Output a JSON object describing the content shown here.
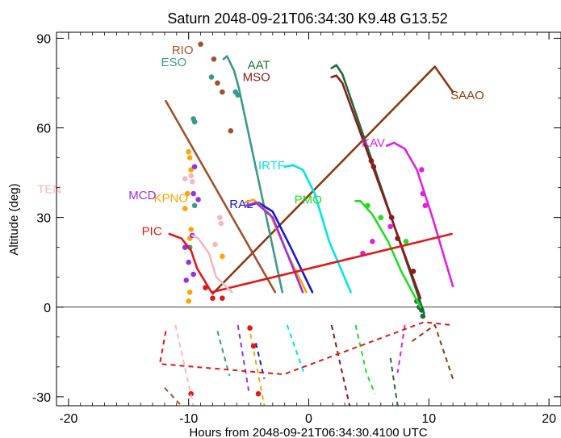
{
  "chart_data": {
    "type": "line",
    "title": "Saturn 2048-09-21T06:34:30   K9.48   G13.52",
    "xlabel": "Hours from 2048-09-21T06:34:30.4100 UTC",
    "ylabel": "Altitude (deg)",
    "xlim": [
      -21,
      21
    ],
    "ylim": [
      -33,
      92
    ],
    "x_ticks": [
      -20,
      -10,
      0,
      10,
      20
    ],
    "y_ticks": [
      -30,
      0,
      30,
      60,
      90
    ],
    "x_tick_labels": [
      "-20",
      "-10",
      "0",
      "10",
      "20"
    ],
    "y_tick_labels": [
      "-30",
      "0",
      "30",
      "60",
      "90"
    ],
    "horizon_line": 0,
    "series": [
      {
        "name": "SAAO",
        "color": "#8B3A0E",
        "label_at": [
          11.8,
          71
        ],
        "label_anchor": "start",
        "solid": [
          [
            -8.0,
            4.5
          ],
          [
            10.5,
            80.5
          ],
          [
            12.0,
            72
          ]
        ],
        "dashed": [
          [
            12.0,
            -24
          ],
          [
            10.5,
            -6
          ],
          [
            8.4,
            -12
          ]
        ],
        "dots": []
      },
      {
        "name": "RIO",
        "color": "#A0522D",
        "label_at": [
          -11.4,
          86
        ],
        "label_anchor": "start",
        "solid": [
          [
            -11.9,
            69
          ],
          [
            -2.8,
            5
          ]
        ],
        "dashed": [
          [
            -12.0,
            -27
          ],
          [
            -10.6,
            -33
          ]
        ],
        "dots": [
          [
            -9.0,
            88
          ],
          [
            -7.9,
            83
          ],
          [
            -7.6,
            75
          ],
          [
            -7.2,
            72
          ],
          [
            -6.5,
            59
          ]
        ]
      },
      {
        "name": "ESO",
        "color": "#3A9A8A",
        "label_at": [
          -12.3,
          82
        ],
        "label_anchor": "start",
        "solid": [
          [
            -7.1,
            83
          ],
          [
            -6.8,
            84
          ],
          [
            -6.2,
            79
          ],
          [
            -5.8,
            73
          ],
          [
            -2.2,
            5
          ]
        ],
        "dashed": [
          [
            -7.6,
            -8
          ],
          [
            -6.6,
            -23
          ]
        ],
        "dots": [
          [
            -9.6,
            63
          ],
          [
            -9.5,
            62
          ],
          [
            -6.1,
            72
          ],
          [
            -5.9,
            71
          ],
          [
            -8.1,
            77
          ],
          [
            -9.5,
            34
          ],
          [
            -9.9,
            20
          ]
        ]
      },
      {
        "name": "AAT",
        "color": "#1F6B3A",
        "label_at": [
          -5.1,
          81
        ],
        "label_anchor": "start",
        "solid": [
          [
            1.9,
            80
          ],
          [
            2.3,
            81
          ],
          [
            2.8,
            78
          ],
          [
            9.6,
            -2
          ]
        ],
        "dashed": [
          [
            6.8,
            -17
          ],
          [
            7.4,
            -33
          ]
        ],
        "dots": [
          [
            9.0,
            2
          ],
          [
            9.2,
            0
          ],
          [
            9.4,
            -1
          ],
          [
            9.5,
            -3
          ]
        ]
      },
      {
        "name": "MSO",
        "color": "#8B1A1A",
        "label_at": [
          -5.5,
          77
        ],
        "label_anchor": "start",
        "solid": [
          [
            1.9,
            77
          ],
          [
            2.3,
            77.5
          ],
          [
            2.8,
            75
          ],
          [
            9.3,
            3
          ]
        ],
        "dashed": [
          [
            1.9,
            -6
          ],
          [
            3.4,
            -33
          ]
        ],
        "dots": [
          [
            5.2,
            49
          ],
          [
            5.4,
            47
          ],
          [
            6.9,
            30
          ],
          [
            7.4,
            23
          ],
          [
            8.7,
            12
          ]
        ]
      },
      {
        "name": "KAV",
        "color": "#E020E0",
        "label_at": [
          4.4,
          55
        ],
        "label_anchor": "start",
        "solid": [
          [
            6.5,
            54
          ],
          [
            7.1,
            55
          ],
          [
            8.0,
            53
          ],
          [
            9.0,
            46
          ],
          [
            10.3,
            30
          ],
          [
            12.0,
            7
          ]
        ],
        "dashed": [
          [
            8.0,
            -6
          ],
          [
            7.4,
            -22
          ]
        ],
        "dots": [
          [
            6.8,
            27
          ],
          [
            9.4,
            46
          ],
          [
            9.5,
            38
          ],
          [
            9.7,
            34
          ],
          [
            5.3,
            22
          ],
          [
            4.5,
            18
          ]
        ]
      },
      {
        "name": "IRTF",
        "color": "#00E5E5",
        "label_at": [
          -4.2,
          47.5
        ],
        "label_anchor": "start",
        "solid": [
          [
            -2.0,
            47
          ],
          [
            -1.3,
            47.5
          ],
          [
            -0.5,
            46
          ],
          [
            0.5,
            38
          ],
          [
            1.7,
            22
          ],
          [
            3.5,
            5
          ]
        ],
        "dashed": [
          [
            -1.8,
            -6
          ],
          [
            -0.4,
            -22
          ]
        ],
        "dots": []
      },
      {
        "name": "PMO",
        "color": "#22DD22",
        "label_at": [
          -1.2,
          36
        ],
        "label_anchor": "start",
        "solid": [
          [
            3.9,
            35.5
          ],
          [
            4.3,
            35.5
          ],
          [
            5.3,
            31
          ],
          [
            6.6,
            22
          ],
          [
            7.7,
            12
          ],
          [
            9.3,
            0
          ]
        ],
        "dashed": [
          [
            3.9,
            -6
          ],
          [
            4.8,
            -22
          ],
          [
            5.5,
            -29
          ]
        ],
        "dots": [
          [
            4.9,
            34
          ],
          [
            6.0,
            30
          ],
          [
            8.1,
            22
          ]
        ]
      },
      {
        "name": "RAL",
        "color": "#1818D8",
        "label_at": [
          -6.6,
          34.5
        ],
        "label_anchor": "start",
        "solid": [
          [
            -5.0,
            34
          ],
          [
            -4.2,
            35
          ],
          [
            -3.0,
            32
          ],
          [
            -1.5,
            20
          ],
          [
            0.3,
            5
          ]
        ],
        "dashed": [
          [
            -4.4,
            -12
          ],
          [
            -3.7,
            -24
          ]
        ],
        "dots": []
      },
      {
        "name": "KPNO",
        "color": "#FFA500",
        "label_at": [
          -12.9,
          36.5
        ],
        "label_anchor": "start",
        "solid": [
          [
            -5.3,
            35
          ],
          [
            -4.6,
            36
          ],
          [
            -3.2,
            31
          ],
          [
            -1.8,
            18
          ],
          [
            -0.2,
            5
          ]
        ],
        "dashed": [
          [
            -5.0,
            -6
          ],
          [
            -3.7,
            -33
          ]
        ],
        "dots": [
          [
            -10.0,
            52
          ],
          [
            -9.9,
            50
          ],
          [
            -9.8,
            46
          ],
          [
            -10.1,
            38
          ],
          [
            -10.3,
            33
          ],
          [
            -9.8,
            26
          ],
          [
            -9.9,
            23
          ],
          [
            -7.2,
            17
          ],
          [
            -9.9,
            5
          ],
          [
            -10.0,
            2
          ]
        ]
      },
      {
        "name": "MCD",
        "color": "#9A30E0",
        "label_at": [
          -15.0,
          37.5
        ],
        "label_anchor": "start",
        "solid": [
          [
            -5.2,
            34
          ],
          [
            -4.4,
            35
          ],
          [
            -3.0,
            30
          ],
          [
            -2.0,
            20
          ],
          [
            -0.5,
            5
          ]
        ],
        "dashed": [
          [
            -5.9,
            -6
          ],
          [
            -5.0,
            -28
          ]
        ],
        "dots": [
          [
            -9.5,
            47
          ],
          [
            -9.6,
            38
          ],
          [
            -9.2,
            36
          ],
          [
            -9.7,
            24
          ],
          [
            -10.3,
            20
          ],
          [
            -10.0,
            15
          ],
          [
            -9.6,
            11
          ],
          [
            -10.2,
            9
          ]
        ]
      },
      {
        "name": "PIC",
        "color": "#E01818",
        "label_at": [
          -13.9,
          25.5
        ],
        "label_anchor": "start",
        "solid": [
          [
            -11.6,
            24.5
          ],
          [
            -10.6,
            23
          ],
          [
            -9.8,
            19
          ],
          [
            -9.3,
            13
          ],
          [
            -8.1,
            5
          ],
          [
            11.9,
            24.5
          ]
        ],
        "dashed": [
          [
            -11.9,
            -8
          ],
          [
            -12.4,
            -19
          ],
          [
            -2.1,
            -22.5
          ],
          [
            9.6,
            -5
          ],
          [
            11.9,
            -6
          ]
        ],
        "dots": [
          [
            -8.6,
            6.5
          ],
          [
            -8.0,
            3
          ],
          [
            -7.2,
            3
          ],
          [
            -4.9,
            -7
          ],
          [
            -4.6,
            -13
          ],
          [
            -4.2,
            -29
          ],
          [
            -9.8,
            -29
          ]
        ]
      },
      {
        "name": "TEN",
        "color": "#F4B8C0",
        "label_at": [
          -22.6,
          39.5
        ],
        "label_anchor": "start",
        "solid": [
          [
            -9.7,
            24
          ],
          [
            -9.2,
            23
          ],
          [
            -8.3,
            18
          ],
          [
            -7.7,
            10
          ],
          [
            -6.4,
            5
          ]
        ],
        "dashed": [
          [
            -11.1,
            -6
          ],
          [
            -10.6,
            -15
          ],
          [
            -9.6,
            -33
          ]
        ],
        "dots": [
          [
            -10.3,
            43
          ],
          [
            -9.8,
            44
          ],
          [
            -9.7,
            42
          ],
          [
            -7.4,
            30
          ],
          [
            -7.3,
            28
          ],
          [
            -7.8,
            21
          ]
        ]
      }
    ]
  }
}
